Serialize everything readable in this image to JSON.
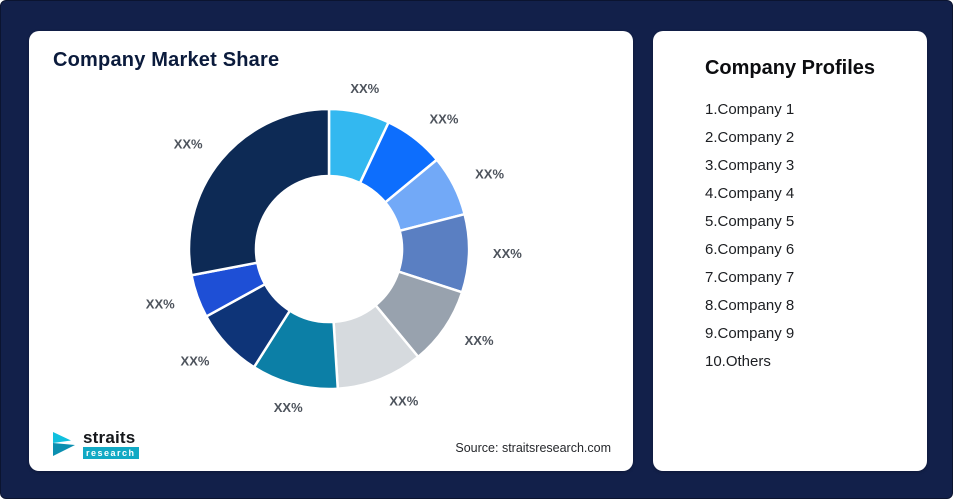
{
  "left_card": {
    "title": "Company Market Share",
    "source": "Source: straitsresearch.com",
    "logo": {
      "name": "straits",
      "sub": "research"
    }
  },
  "right_card": {
    "title": "Company Profiles",
    "items": [
      "1.Company 1",
      "2.Company 2",
      "3.Company 3",
      "4.Company 4",
      "5.Company 5",
      "6.Company 6",
      "7.Company 7",
      "8.Company 8",
      "9.Company 9",
      "10.Others"
    ]
  },
  "chart_data": {
    "type": "pie",
    "title": "Company Market Share",
    "donut": true,
    "inner_radius_ratio": 0.52,
    "start_angle_deg": -90,
    "direction": "clockwise",
    "legend_position": "none",
    "value_labels_shown_as": "XX%",
    "segments": [
      {
        "name": "Company 1",
        "label": "XX%",
        "value": 7,
        "color": "#33b8f0"
      },
      {
        "name": "Company 2",
        "label": "XX%",
        "value": 7,
        "color": "#0d6efd"
      },
      {
        "name": "Company 3",
        "label": "XX%",
        "value": 7,
        "color": "#72a9f7"
      },
      {
        "name": "Company 4",
        "label": "XX%",
        "value": 9,
        "color": "#5a7fc2"
      },
      {
        "name": "Company 5",
        "label": "XX%",
        "value": 9,
        "color": "#98a2ae"
      },
      {
        "name": "Company 6",
        "label": "XX%",
        "value": 10,
        "color": "#d6dade"
      },
      {
        "name": "Company 7",
        "label": "XX%",
        "value": 10,
        "color": "#0c7fa6"
      },
      {
        "name": "Company 8",
        "label": "XX%",
        "value": 8,
        "color": "#0e3478"
      },
      {
        "name": "Company 9",
        "label": "XX%",
        "value": 5,
        "color": "#1e4fd6"
      },
      {
        "name": "Others",
        "label": "XX%",
        "value": 28,
        "color": "#0d2a55"
      }
    ]
  }
}
